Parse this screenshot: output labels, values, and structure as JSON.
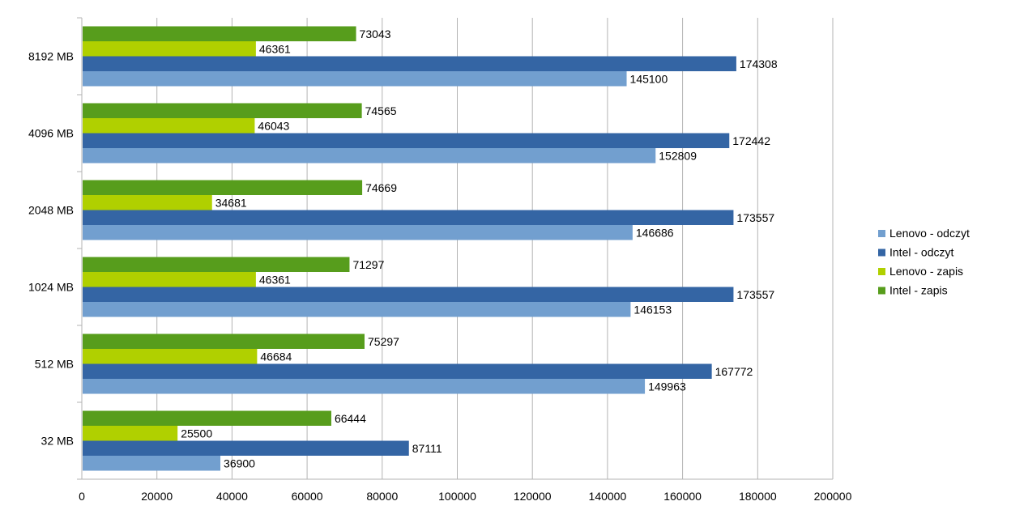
{
  "chart_data": {
    "type": "bar",
    "orientation": "horizontal",
    "categories": [
      "32 MB",
      "512 MB",
      "1024 MB",
      "2048 MB",
      "4096 MB",
      "8192 MB"
    ],
    "series": [
      {
        "name": "Lenovo - odczyt",
        "color": "#729fcf",
        "values": [
          36900,
          149963,
          146153,
          146686,
          152809,
          145100
        ]
      },
      {
        "name": "Intel - odczyt",
        "color": "#3465a4",
        "values": [
          87111,
          167772,
          173557,
          173557,
          172442,
          174308
        ]
      },
      {
        "name": "Lenovo - zapis",
        "color": "#b0d000",
        "values": [
          25500,
          46684,
          46361,
          34681,
          46043,
          46361
        ]
      },
      {
        "name": "Intel - zapis",
        "color": "#579d1c",
        "values": [
          66444,
          75297,
          71297,
          74669,
          74565,
          73043
        ]
      }
    ],
    "xlim": [
      0,
      200000
    ],
    "x_ticks": [
      "0",
      "20000",
      "40000",
      "60000",
      "80000",
      "100000",
      "120000",
      "140000",
      "160000",
      "180000",
      "200000"
    ],
    "grid": true,
    "legend_position": "right",
    "title": "",
    "xlabel": "",
    "ylabel": ""
  }
}
